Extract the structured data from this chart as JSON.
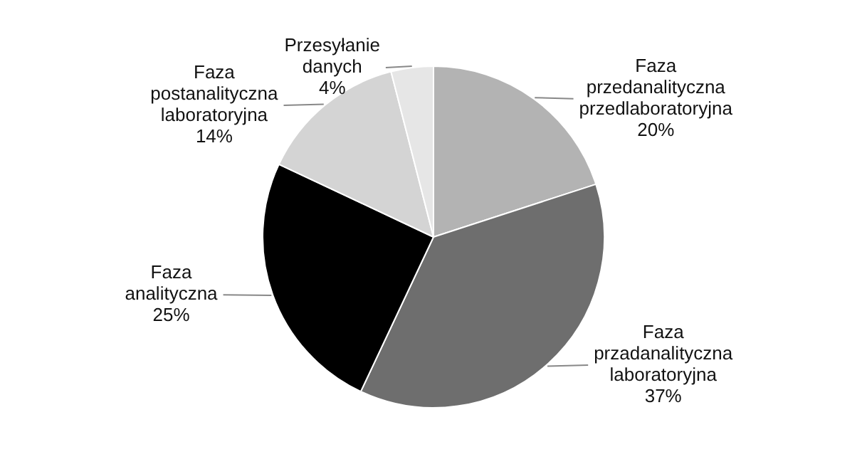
{
  "chart_data": {
    "type": "pie",
    "categories": [
      "Faza przedanalityczna przedlaboratoryjna",
      "Faza przadanalityczna laboratoryjna",
      "Faza analityczna",
      "Faza postanalityczna laboratoryjna",
      "Przesyłanie danych"
    ],
    "values": [
      20,
      37,
      25,
      14,
      4
    ],
    "colors": [
      "#b3b3b3",
      "#6e6e6e",
      "#000000",
      "#d4d4d4",
      "#e6e6e6"
    ],
    "value_labels": [
      "20%",
      "37%",
      "25%",
      "14%",
      "4%"
    ],
    "legend": false
  }
}
